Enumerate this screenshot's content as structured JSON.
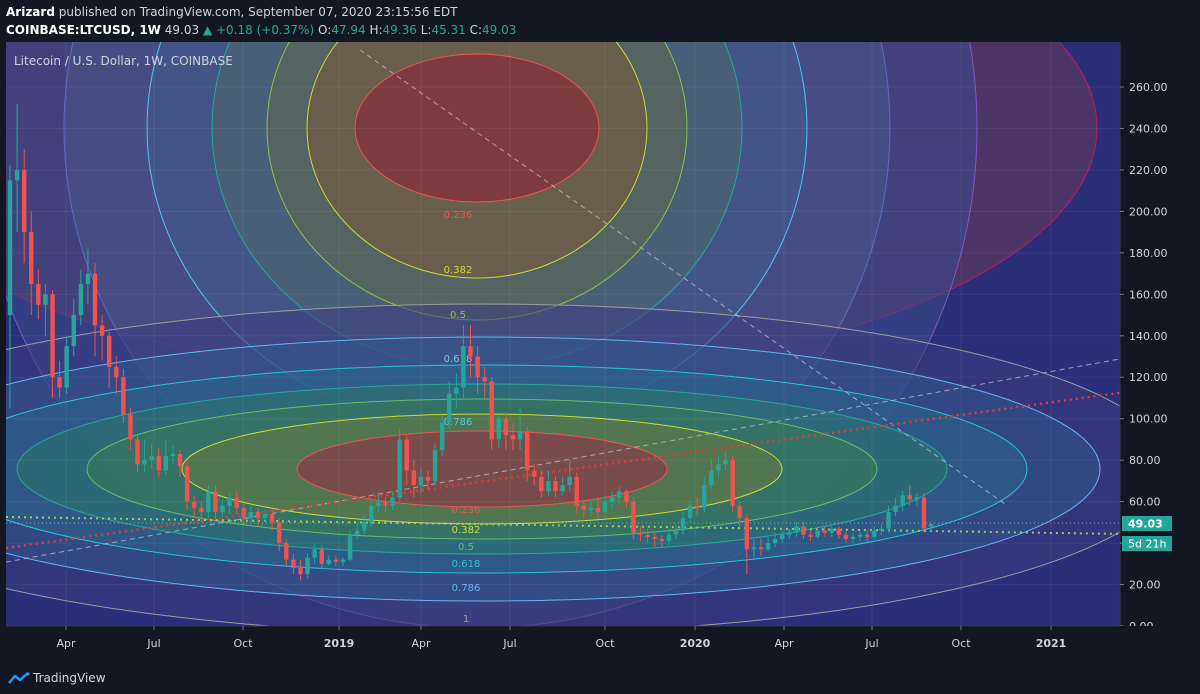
{
  "header": {
    "author": "Arizard",
    "published_text": "published on TradingView.com, September 07, 2020 23:15:56 EDT",
    "symbol": "COINBASE:LTCUSD, 1W",
    "last": "49.03",
    "change_arrow": "▲",
    "change": "+0.18 (+0.37%)",
    "o_label": "O:",
    "o": "47.94",
    "h_label": "H:",
    "h": "49.36",
    "l_label": "L:",
    "l": "45.31",
    "c_label": "C:",
    "c": "49.03"
  },
  "footer": {
    "brand": "TradingView"
  },
  "chart_data": {
    "type": "candlestick",
    "title": "Litecoin / U.S. Dollar, 1W, COINBASE",
    "y_axis": {
      "ticks": [
        "0.00",
        "20.00",
        "40.00",
        "60.00",
        "80.00",
        "100.00",
        "120.00",
        "140.00",
        "160.00",
        "180.00",
        "200.00",
        "220.00",
        "240.00",
        "260.00"
      ],
      "range": [
        0,
        275
      ]
    },
    "x_axis": {
      "ticks": [
        "Apr",
        "Jul",
        "Oct",
        "2019",
        "Apr",
        "Jul",
        "Oct",
        "2020",
        "Apr",
        "Jul",
        "Oct",
        "2021"
      ],
      "bold_ticks": [
        "2019",
        "2020",
        "2021"
      ]
    },
    "price_label": "49.03",
    "countdown_label": "5d 21h",
    "fib_levels_lower": [
      "0.236",
      "0.382",
      "0.5",
      "0.618",
      "0.786",
      "1"
    ],
    "fib_levels_upper": [
      "0.236",
      "0.382",
      "0.5",
      "0.618",
      "0.786"
    ],
    "colors": {
      "up": "#26a69a",
      "down": "#ef5350",
      "background": "#131722",
      "trend": "#c62828",
      "support": "#8bc34a",
      "price_badge": "#26a69a"
    },
    "series": [
      {
        "o": 150,
        "c": 215,
        "h": 222,
        "l": 105
      },
      {
        "o": 215,
        "c": 220,
        "h": 252,
        "l": 190
      },
      {
        "o": 220,
        "c": 190,
        "h": 230,
        "l": 175
      },
      {
        "o": 190,
        "c": 165,
        "h": 200,
        "l": 150
      },
      {
        "o": 165,
        "c": 155,
        "h": 172,
        "l": 148
      },
      {
        "o": 155,
        "c": 160,
        "h": 165,
        "l": 140
      },
      {
        "o": 160,
        "c": 120,
        "h": 162,
        "l": 110
      },
      {
        "o": 120,
        "c": 115,
        "h": 128,
        "l": 110
      },
      {
        "o": 115,
        "c": 135,
        "h": 140,
        "l": 112
      },
      {
        "o": 135,
        "c": 150,
        "h": 158,
        "l": 130
      },
      {
        "o": 150,
        "c": 165,
        "h": 172,
        "l": 145
      },
      {
        "o": 165,
        "c": 170,
        "h": 182,
        "l": 155
      },
      {
        "o": 170,
        "c": 145,
        "h": 175,
        "l": 130
      },
      {
        "o": 145,
        "c": 140,
        "h": 150,
        "l": 128
      },
      {
        "o": 140,
        "c": 125,
        "h": 142,
        "l": 115
      },
      {
        "o": 125,
        "c": 120,
        "h": 130,
        "l": 112
      },
      {
        "o": 120,
        "c": 102,
        "h": 124,
        "l": 98
      },
      {
        "o": 102,
        "c": 90,
        "h": 105,
        "l": 85
      },
      {
        "o": 90,
        "c": 78,
        "h": 92,
        "l": 74
      },
      {
        "o": 78,
        "c": 80,
        "h": 90,
        "l": 74
      },
      {
        "o": 80,
        "c": 82,
        "h": 88,
        "l": 76
      },
      {
        "o": 82,
        "c": 75,
        "h": 86,
        "l": 72
      },
      {
        "o": 75,
        "c": 82,
        "h": 90,
        "l": 73
      },
      {
        "o": 82,
        "c": 83,
        "h": 87,
        "l": 78
      },
      {
        "o": 83,
        "c": 77,
        "h": 85,
        "l": 72
      },
      {
        "o": 77,
        "c": 60,
        "h": 79,
        "l": 56
      },
      {
        "o": 60,
        "c": 57,
        "h": 63,
        "l": 52
      },
      {
        "o": 57,
        "c": 55,
        "h": 60,
        "l": 50
      },
      {
        "o": 55,
        "c": 65,
        "h": 68,
        "l": 52
      },
      {
        "o": 65,
        "c": 55,
        "h": 68,
        "l": 52
      },
      {
        "o": 55,
        "c": 58,
        "h": 61,
        "l": 53
      },
      {
        "o": 58,
        "c": 62,
        "h": 64,
        "l": 54
      },
      {
        "o": 62,
        "c": 57,
        "h": 65,
        "l": 54
      },
      {
        "o": 57,
        "c": 52,
        "h": 59,
        "l": 49
      },
      {
        "o": 52,
        "c": 55,
        "h": 58,
        "l": 50
      },
      {
        "o": 55,
        "c": 52,
        "h": 57,
        "l": 48
      },
      {
        "o": 52,
        "c": 54,
        "h": 56,
        "l": 50
      },
      {
        "o": 54,
        "c": 50,
        "h": 56,
        "l": 46
      },
      {
        "o": 50,
        "c": 40,
        "h": 52,
        "l": 36
      },
      {
        "o": 40,
        "c": 32,
        "h": 42,
        "l": 29
      },
      {
        "o": 32,
        "c": 28,
        "h": 35,
        "l": 25
      },
      {
        "o": 28,
        "c": 25,
        "h": 32,
        "l": 22
      },
      {
        "o": 25,
        "c": 33,
        "h": 35,
        "l": 23
      },
      {
        "o": 33,
        "c": 37,
        "h": 40,
        "l": 30
      },
      {
        "o": 37,
        "c": 30,
        "h": 39,
        "l": 28
      },
      {
        "o": 30,
        "c": 32,
        "h": 34,
        "l": 29
      },
      {
        "o": 32,
        "c": 31,
        "h": 34,
        "l": 29
      },
      {
        "o": 31,
        "c": 32,
        "h": 33,
        "l": 29
      },
      {
        "o": 32,
        "c": 44,
        "h": 46,
        "l": 31
      },
      {
        "o": 44,
        "c": 46,
        "h": 50,
        "l": 42
      },
      {
        "o": 46,
        "c": 50,
        "h": 53,
        "l": 44
      },
      {
        "o": 50,
        "c": 58,
        "h": 60,
        "l": 48
      },
      {
        "o": 58,
        "c": 60,
        "h": 64,
        "l": 55
      },
      {
        "o": 60,
        "c": 58,
        "h": 62,
        "l": 55
      },
      {
        "o": 58,
        "c": 62,
        "h": 65,
        "l": 56
      },
      {
        "o": 62,
        "c": 90,
        "h": 95,
        "l": 60
      },
      {
        "o": 90,
        "c": 75,
        "h": 92,
        "l": 68
      },
      {
        "o": 75,
        "c": 68,
        "h": 80,
        "l": 62
      },
      {
        "o": 68,
        "c": 72,
        "h": 76,
        "l": 64
      },
      {
        "o": 72,
        "c": 70,
        "h": 75,
        "l": 66
      },
      {
        "o": 70,
        "c": 85,
        "h": 88,
        "l": 68
      },
      {
        "o": 85,
        "c": 98,
        "h": 102,
        "l": 82
      },
      {
        "o": 98,
        "c": 112,
        "h": 118,
        "l": 95
      },
      {
        "o": 112,
        "c": 115,
        "h": 122,
        "l": 105
      },
      {
        "o": 115,
        "c": 135,
        "h": 145,
        "l": 110
      },
      {
        "o": 135,
        "c": 130,
        "h": 145,
        "l": 120
      },
      {
        "o": 130,
        "c": 120,
        "h": 135,
        "l": 112
      },
      {
        "o": 120,
        "c": 118,
        "h": 125,
        "l": 110
      },
      {
        "o": 118,
        "c": 90,
        "h": 120,
        "l": 85
      },
      {
        "o": 90,
        "c": 100,
        "h": 102,
        "l": 86
      },
      {
        "o": 100,
        "c": 92,
        "h": 103,
        "l": 85
      },
      {
        "o": 92,
        "c": 90,
        "h": 98,
        "l": 85
      },
      {
        "o": 90,
        "c": 94,
        "h": 105,
        "l": 85
      },
      {
        "o": 94,
        "c": 75,
        "h": 96,
        "l": 70
      },
      {
        "o": 75,
        "c": 72,
        "h": 78,
        "l": 68
      },
      {
        "o": 72,
        "c": 65,
        "h": 75,
        "l": 62
      },
      {
        "o": 65,
        "c": 70,
        "h": 75,
        "l": 63
      },
      {
        "o": 70,
        "c": 65,
        "h": 72,
        "l": 62
      },
      {
        "o": 65,
        "c": 68,
        "h": 72,
        "l": 63
      },
      {
        "o": 68,
        "c": 72,
        "h": 80,
        "l": 65
      },
      {
        "o": 72,
        "c": 58,
        "h": 74,
        "l": 54
      },
      {
        "o": 58,
        "c": 56,
        "h": 60,
        "l": 52
      },
      {
        "o": 56,
        "c": 57,
        "h": 60,
        "l": 53
      },
      {
        "o": 57,
        "c": 55,
        "h": 62,
        "l": 52
      },
      {
        "o": 55,
        "c": 60,
        "h": 63,
        "l": 54
      },
      {
        "o": 60,
        "c": 62,
        "h": 65,
        "l": 57
      },
      {
        "o": 62,
        "c": 65,
        "h": 67,
        "l": 59
      },
      {
        "o": 65,
        "c": 60,
        "h": 66,
        "l": 57
      },
      {
        "o": 60,
        "c": 45,
        "h": 62,
        "l": 42
      },
      {
        "o": 45,
        "c": 44,
        "h": 48,
        "l": 41
      },
      {
        "o": 44,
        "c": 43,
        "h": 47,
        "l": 40
      },
      {
        "o": 43,
        "c": 42,
        "h": 45,
        "l": 38
      },
      {
        "o": 42,
        "c": 41,
        "h": 44,
        "l": 38
      },
      {
        "o": 41,
        "c": 44,
        "h": 47,
        "l": 39
      },
      {
        "o": 44,
        "c": 46,
        "h": 49,
        "l": 42
      },
      {
        "o": 46,
        "c": 52,
        "h": 55,
        "l": 44
      },
      {
        "o": 52,
        "c": 58,
        "h": 60,
        "l": 50
      },
      {
        "o": 58,
        "c": 57,
        "h": 62,
        "l": 53
      },
      {
        "o": 57,
        "c": 68,
        "h": 72,
        "l": 55
      },
      {
        "o": 68,
        "c": 75,
        "h": 80,
        "l": 66
      },
      {
        "o": 75,
        "c": 78,
        "h": 82,
        "l": 72
      },
      {
        "o": 78,
        "c": 80,
        "h": 84,
        "l": 75
      },
      {
        "o": 80,
        "c": 58,
        "h": 82,
        "l": 55
      },
      {
        "o": 58,
        "c": 52,
        "h": 60,
        "l": 48
      },
      {
        "o": 52,
        "c": 37,
        "h": 54,
        "l": 25
      },
      {
        "o": 37,
        "c": 38,
        "h": 42,
        "l": 33
      },
      {
        "o": 38,
        "c": 37,
        "h": 42,
        "l": 34
      },
      {
        "o": 37,
        "c": 40,
        "h": 43,
        "l": 36
      },
      {
        "o": 40,
        "c": 42,
        "h": 45,
        "l": 38
      },
      {
        "o": 42,
        "c": 44,
        "h": 46,
        "l": 40
      },
      {
        "o": 44,
        "c": 45,
        "h": 47,
        "l": 42
      },
      {
        "o": 45,
        "c": 48,
        "h": 50,
        "l": 43
      },
      {
        "o": 48,
        "c": 44,
        "h": 50,
        "l": 42
      },
      {
        "o": 44,
        "c": 43,
        "h": 46,
        "l": 41
      },
      {
        "o": 43,
        "c": 46,
        "h": 48,
        "l": 42
      },
      {
        "o": 46,
        "c": 45,
        "h": 48,
        "l": 43
      },
      {
        "o": 45,
        "c": 47,
        "h": 48,
        "l": 43
      },
      {
        "o": 47,
        "c": 44,
        "h": 48,
        "l": 42
      },
      {
        "o": 44,
        "c": 42,
        "h": 46,
        "l": 40
      },
      {
        "o": 42,
        "c": 43,
        "h": 45,
        "l": 40
      },
      {
        "o": 43,
        "c": 44,
        "h": 46,
        "l": 41
      },
      {
        "o": 44,
        "c": 43,
        "h": 46,
        "l": 41
      },
      {
        "o": 43,
        "c": 46,
        "h": 48,
        "l": 42
      },
      {
        "o": 46,
        "c": 47,
        "h": 49,
        "l": 44
      },
      {
        "o": 47,
        "c": 55,
        "h": 58,
        "l": 45
      },
      {
        "o": 55,
        "c": 58,
        "h": 62,
        "l": 53
      },
      {
        "o": 58,
        "c": 63,
        "h": 65,
        "l": 55
      },
      {
        "o": 63,
        "c": 61,
        "h": 68,
        "l": 58
      },
      {
        "o": 61,
        "c": 62,
        "h": 64,
        "l": 58
      },
      {
        "o": 62,
        "c": 47,
        "h": 64,
        "l": 45
      },
      {
        "o": 47.94,
        "c": 49.03,
        "h": 49.36,
        "l": 45.31
      }
    ]
  }
}
